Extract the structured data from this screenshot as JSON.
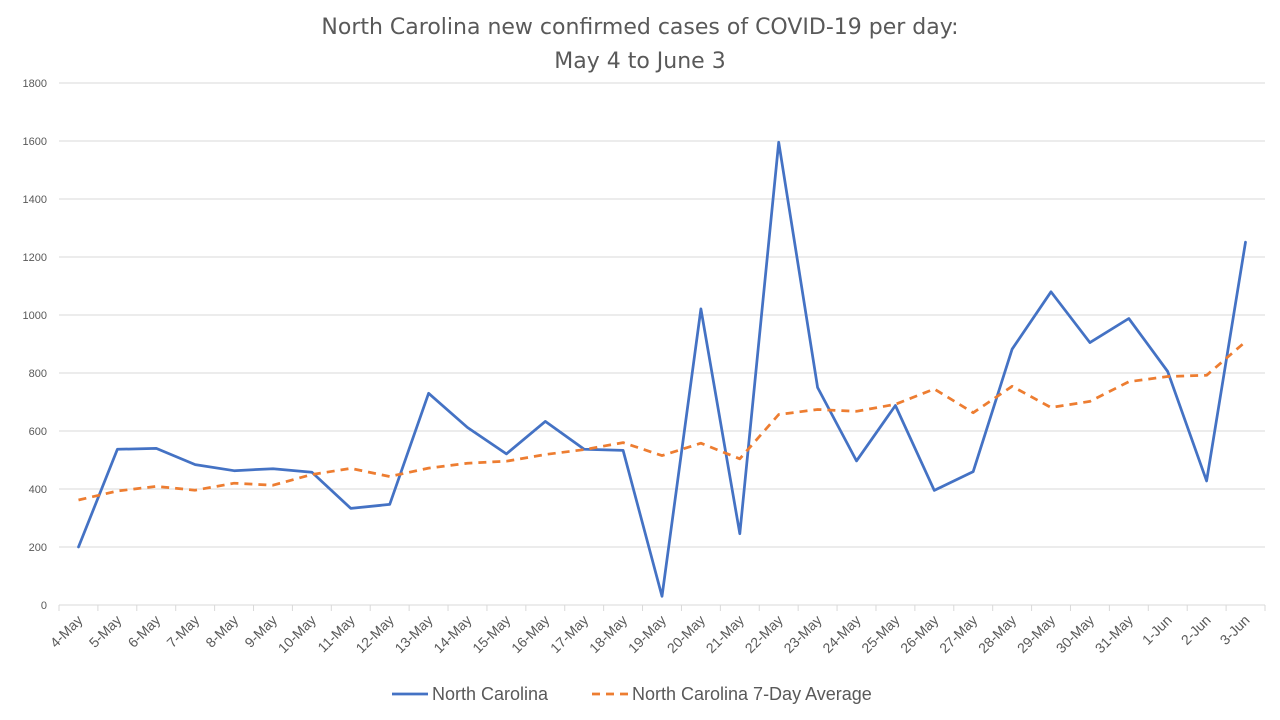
{
  "chart_data": {
    "type": "line",
    "title_lines": [
      "North Carolina new confirmed cases of COVID-19 per day:",
      "May 4 to June 3"
    ],
    "xlabel": "",
    "ylabel": "",
    "ylim": [
      0,
      1800
    ],
    "yticks": [
      0,
      200,
      400,
      600,
      800,
      1000,
      1200,
      1400,
      1600,
      1800
    ],
    "grid": true,
    "legend_position": "bottom",
    "categories": [
      "4-May",
      "5-May",
      "6-May",
      "7-May",
      "8-May",
      "9-May",
      "10-May",
      "11-May",
      "12-May",
      "13-May",
      "14-May",
      "15-May",
      "16-May",
      "17-May",
      "18-May",
      "19-May",
      "20-May",
      "21-May",
      "22-May",
      "23-May",
      "24-May",
      "25-May",
      "26-May",
      "27-May",
      "28-May",
      "29-May",
      "30-May",
      "31-May",
      "1-Jun",
      "2-Jun",
      "3-Jun"
    ],
    "series": [
      {
        "name": "North Carolina",
        "color": "#4472C4",
        "style": "solid",
        "values": [
          200,
          537,
          540,
          484,
          463,
          470,
          458,
          333,
          347,
          730,
          612,
          521,
          633,
          537,
          533,
          30,
          1021,
          246,
          1596,
          750,
          497,
          688,
          395,
          460,
          882,
          1080,
          905,
          988,
          805,
          428,
          1251
        ]
      },
      {
        "name": "North Carolina 7-Day Average",
        "color": "#ED7D31",
        "style": "dashed",
        "values": [
          362,
          393,
          409,
          396,
          420,
          413,
          450,
          471,
          443,
          472,
          489,
          496,
          519,
          536,
          560,
          515,
          558,
          504,
          657,
          674,
          668,
          692,
          745,
          663,
          754,
          681,
          702,
          770,
          788,
          792,
          908
        ]
      }
    ]
  }
}
